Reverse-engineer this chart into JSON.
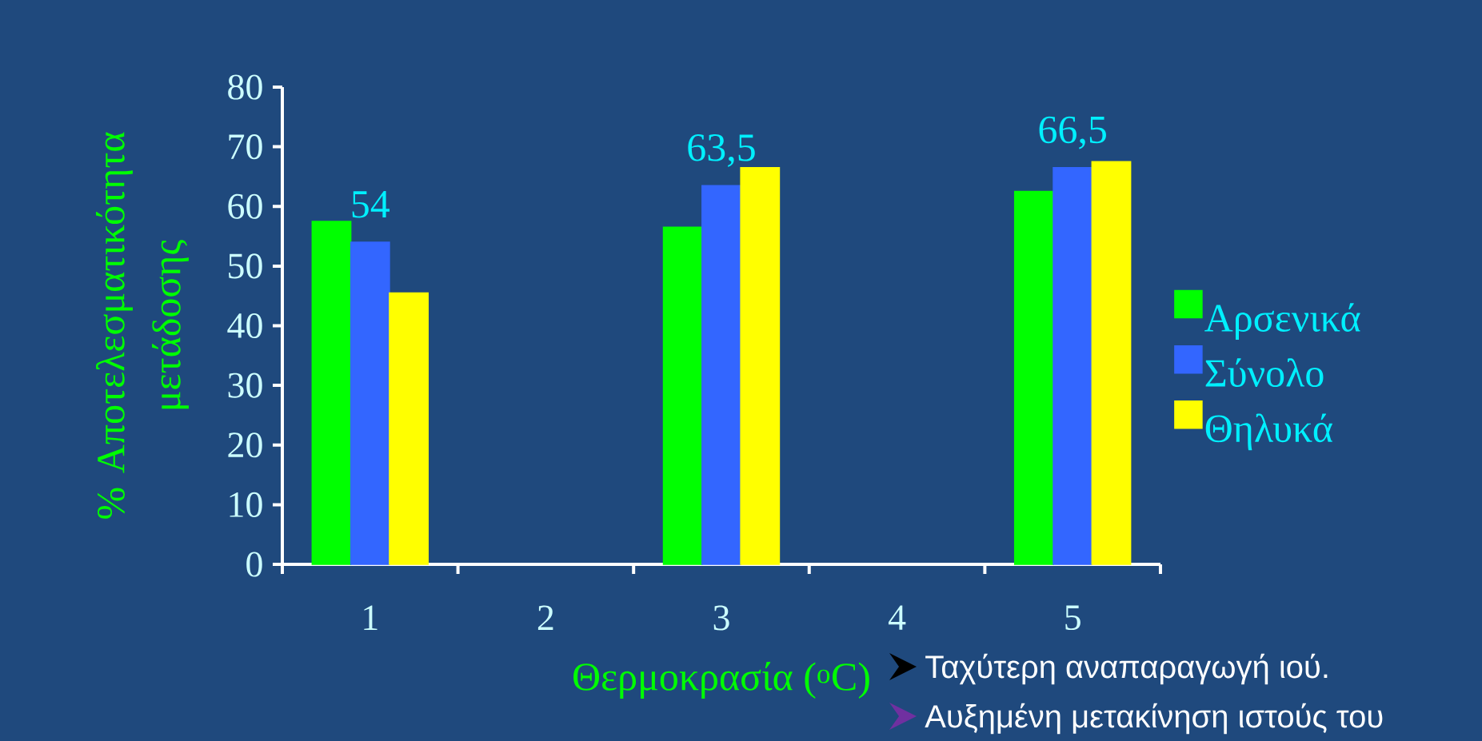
{
  "chart_data": {
    "type": "bar",
    "xlabel": "Θερμοκρασία ($^{o}$C)",
    "ylabel": "% Αποτελεσματικότητα μετάδοσης",
    "categories": [
      "1",
      "2",
      "3",
      "4",
      "5"
    ],
    "ylim": [
      0,
      80
    ],
    "yticks": [
      0,
      10,
      20,
      30,
      40,
      50,
      60,
      70,
      80
    ],
    "legend": "right",
    "series": [
      {
        "name": "Αρσενικά",
        "color": "#00ff00",
        "values": [
          57.5,
          null,
          56.5,
          null,
          62.5
        ]
      },
      {
        "name": "Σύνολο",
        "color": "#3366ff",
        "values": [
          54,
          null,
          63.5,
          null,
          66.5
        ],
        "value_labels": [
          "54",
          null,
          "63,5",
          null,
          "66,5"
        ]
      },
      {
        "name": "Θηλυκά",
        "color": "#ffff00",
        "values": [
          45.5,
          null,
          66.5,
          null,
          67.5
        ]
      }
    ],
    "annotations": [
      "Ταχύτερη αναπαραγωγή ιού.",
      "Αυξημένη μετακίνηση ιστούς του"
    ]
  }
}
